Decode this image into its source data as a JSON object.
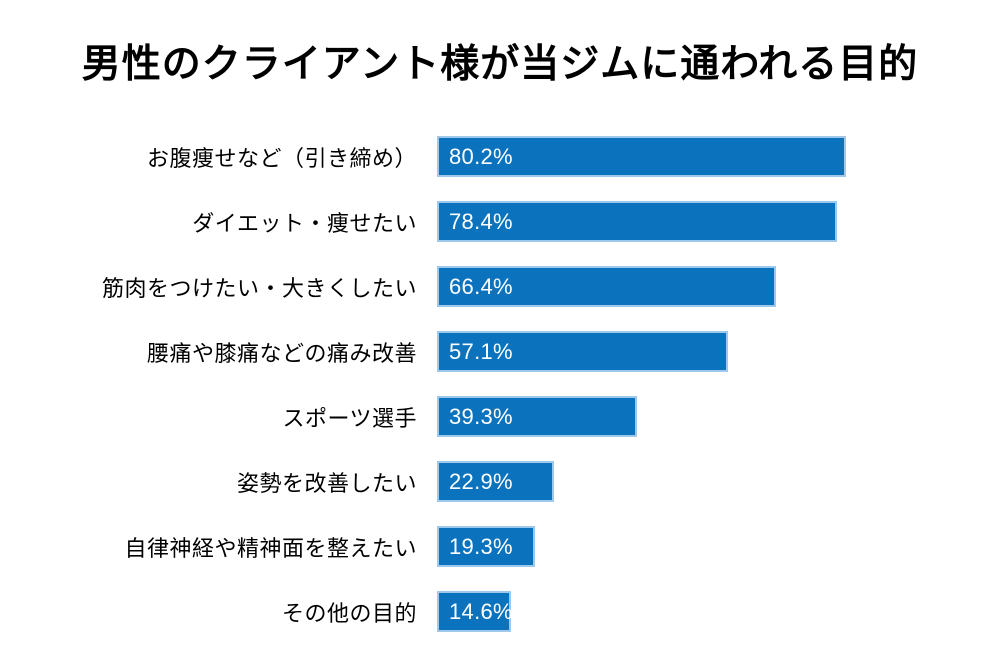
{
  "title": "男性のクライアント様が当ジムに通われる目的",
  "colors": {
    "bar_fill": "#0b72bd",
    "bar_border": "#a8cdee",
    "value_text": "#ffffff",
    "label_text": "#000000",
    "background": "#ffffff"
  },
  "chart_data": {
    "type": "bar",
    "orientation": "horizontal",
    "title": "男性のクライアント様が当ジムに通われる目的",
    "categories": [
      "お腹痩せなど（引き締め）",
      "ダイエット・痩せたい",
      "筋肉をつけたい・大きくしたい",
      "腰痛や膝痛などの痛み改善",
      "スポーツ選手",
      "姿勢を改善したい",
      "自律神経や精神面を整えたい",
      "その他の目的"
    ],
    "values": [
      80.2,
      78.4,
      66.4,
      57.1,
      39.3,
      22.9,
      19.3,
      14.6
    ],
    "value_labels": [
      "80.2%",
      "78.4%",
      "66.4%",
      "57.1%",
      "39.3%",
      "22.9%",
      "19.3%",
      "14.6%"
    ],
    "xlabel": "",
    "ylabel": "",
    "xlim": [
      0,
      100
    ],
    "grid": false,
    "legend": false,
    "value_label_position": "inside-start"
  }
}
